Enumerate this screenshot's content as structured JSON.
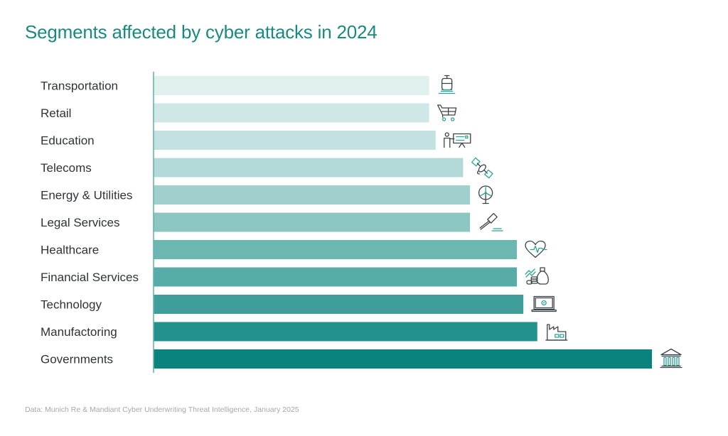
{
  "chart_data": {
    "type": "bar",
    "orientation": "horizontal",
    "title": "Segments affected by cyber attacks in 2024",
    "xlabel": "",
    "ylabel": "",
    "value_scale": "relative (Governments = 100; no axis or values printed)",
    "xlim": [
      0,
      100
    ],
    "grid": false,
    "legend": "none",
    "categories": [
      "Transportation",
      "Retail",
      "Education",
      "Telecoms",
      "Energy & Utilities",
      "Legal Services",
      "Healthcare",
      "Financial Services",
      "Technology",
      "Manufactoring",
      "Governments"
    ],
    "values": [
      55.3,
      55.3,
      56.6,
      62.1,
      63.5,
      63.5,
      72.9,
      72.9,
      74.2,
      77.0,
      100
    ],
    "icons": [
      "train-icon",
      "shopping-cart-icon",
      "teacher-presentation-icon",
      "satellite-icon",
      "wind-turbine-icon",
      "gavel-icon",
      "heart-pulse-icon",
      "money-growth-icon",
      "laptop-gear-icon",
      "factory-icon",
      "government-building-icon"
    ],
    "colors": [
      "#dff0ef",
      "#cfe8e7",
      "#c2e1e0",
      "#b2d9d8",
      "#9fd0ce",
      "#8cc6c3",
      "#6db7b3",
      "#58aca8",
      "#3f9e9a",
      "#23918c",
      "#0a827d"
    ],
    "source": "Data: Munich Re & Mandiant Cyber Underwriting Threat Intelligence, January 2025"
  },
  "colors": {
    "title": "#1a8a80",
    "axis": "#5bb1ab",
    "icon_stroke": "#3c4247",
    "icon_accent": "#2aa396"
  }
}
